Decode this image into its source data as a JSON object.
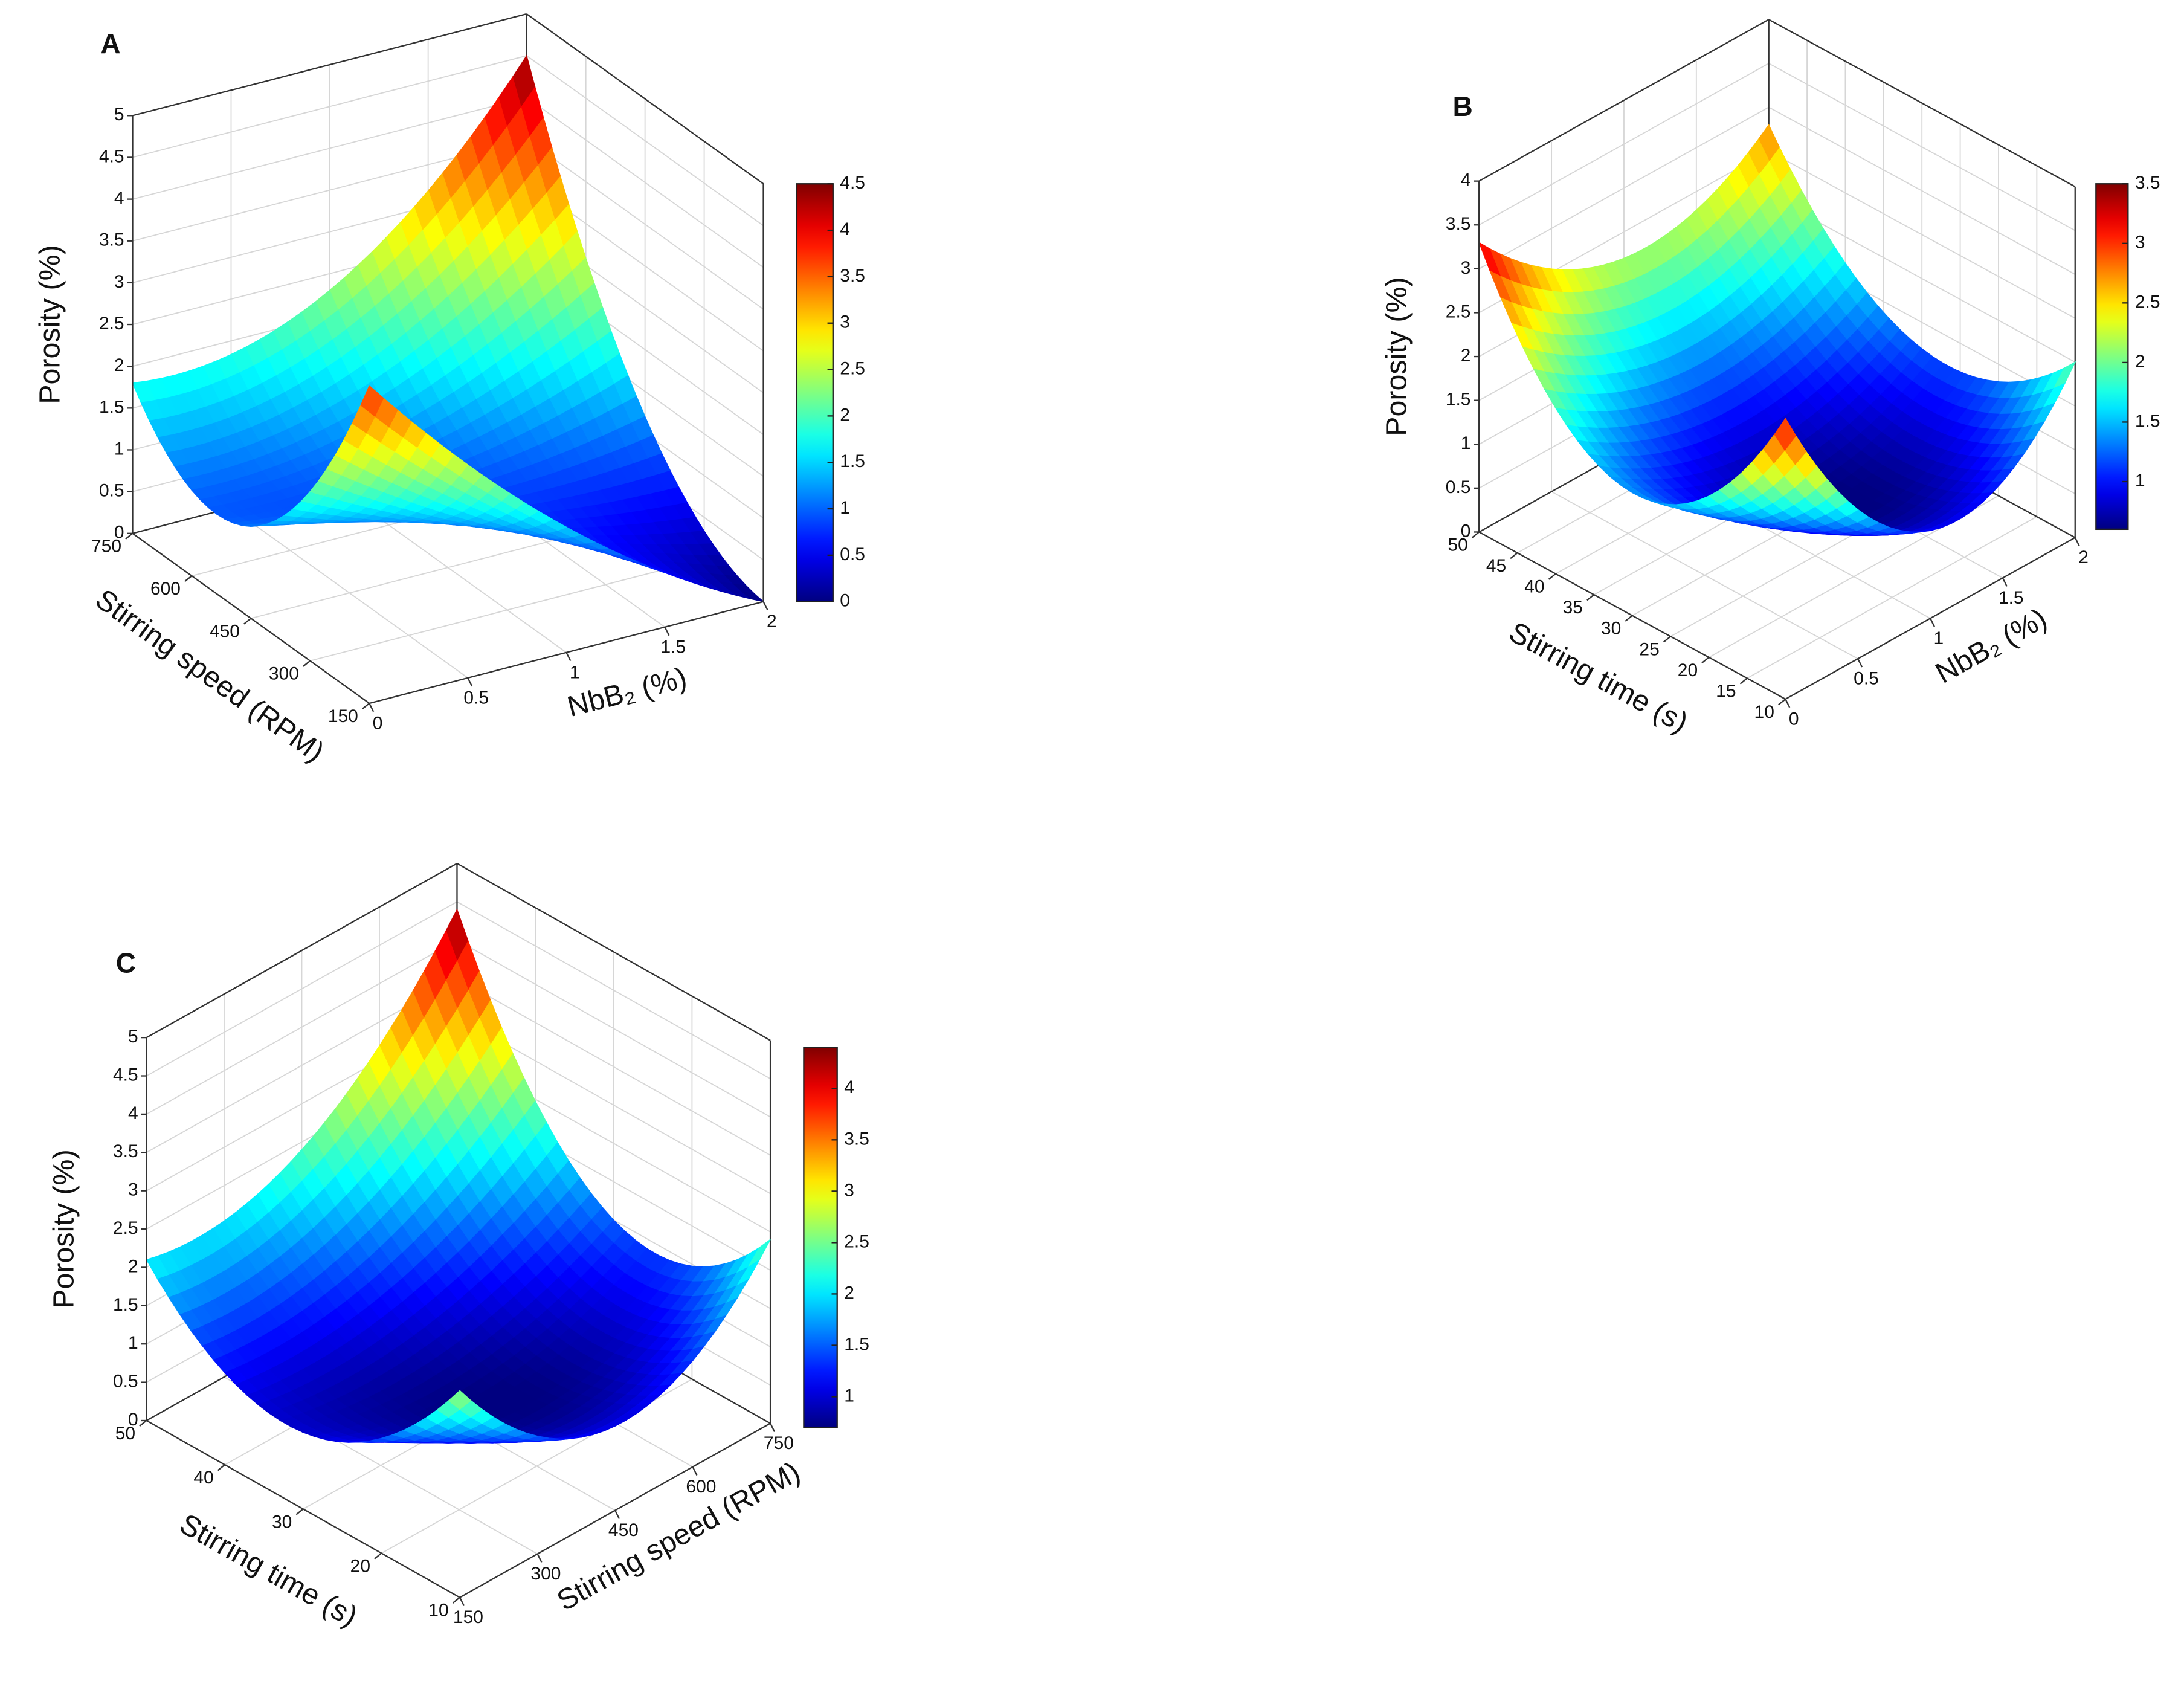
{
  "chart_data": [
    {
      "type": "surface",
      "panel": "A",
      "zlabel": "Porosity (%)",
      "xlabel": "NbB₂ (%)",
      "ylabel": "Stirring speed (RPM)",
      "x": [
        0,
        1,
        2
      ],
      "y": [
        150,
        450,
        750
      ],
      "z": [
        [
          3.8,
          1.5,
          0
        ],
        [
          1.1,
          0.9,
          1.2
        ],
        [
          1.8,
          2.3,
          4.5
        ]
      ],
      "xlim": [
        0,
        2
      ],
      "xticks": [
        0,
        0.5,
        1,
        1.5,
        2
      ],
      "ylim": [
        150,
        750
      ],
      "yticks": [
        150,
        300,
        450,
        600,
        750
      ],
      "zlim": [
        0,
        5
      ],
      "zticks": [
        0,
        0.5,
        1,
        1.5,
        2,
        2.5,
        3,
        3.5,
        4,
        4.5,
        5
      ],
      "colormap": "jet",
      "clim": [
        0,
        4.5
      ],
      "cticks": [
        0,
        0.5,
        1,
        1.5,
        2,
        2.5,
        3,
        3.5,
        4,
        4.5
      ],
      "grid": true
    },
    {
      "type": "surface",
      "panel": "B",
      "zlabel": "Porosity (%)",
      "xlabel": "NbB₂ (%)",
      "ylabel": "Stirring time (s)",
      "x": [
        0,
        1,
        2
      ],
      "y": [
        10,
        30,
        50
      ],
      "z": [
        [
          3.2,
          1.0,
          2.0
        ],
        [
          1.4,
          0.7,
          1.2
        ],
        [
          3.3,
          2.2,
          2.8
        ]
      ],
      "xlim": [
        0,
        2
      ],
      "xticks": [
        0,
        0.5,
        1,
        1.5,
        2
      ],
      "ylim": [
        10,
        50
      ],
      "yticks": [
        10,
        15,
        20,
        25,
        30,
        35,
        40,
        45,
        50
      ],
      "zlim": [
        0,
        4
      ],
      "zticks": [
        0,
        0.5,
        1,
        1.5,
        2,
        2.5,
        3,
        3.5,
        4
      ],
      "colormap": "jet",
      "clim": [
        0.6,
        3.5
      ],
      "cticks": [
        1,
        1.5,
        2,
        2.5,
        3,
        3.5
      ],
      "grid": true
    },
    {
      "type": "surface",
      "panel": "C",
      "zlabel": "Porosity (%)",
      "xlabel": "Stirring speed (RPM)",
      "ylabel": "Stirring time (s)",
      "x": [
        150,
        450,
        750
      ],
      "y": [
        10,
        30,
        50
      ],
      "z": [
        [
          2.7,
          1.1,
          2.4
        ],
        [
          1.0,
          0.8,
          1.5
        ],
        [
          2.1,
          2.4,
          4.4
        ]
      ],
      "xlim": [
        150,
        750
      ],
      "xticks": [
        150,
        300,
        450,
        600,
        750
      ],
      "ylim": [
        10,
        50
      ],
      "yticks": [
        10,
        20,
        30,
        40,
        50
      ],
      "zlim": [
        0,
        5
      ],
      "zticks": [
        0,
        0.5,
        1,
        1.5,
        2,
        2.5,
        3,
        3.5,
        4,
        4.5,
        5
      ],
      "colormap": "jet",
      "clim": [
        0.7,
        4.4
      ],
      "cticks": [
        1,
        1.5,
        2,
        2.5,
        3,
        3.5,
        4
      ],
      "grid": true
    }
  ]
}
